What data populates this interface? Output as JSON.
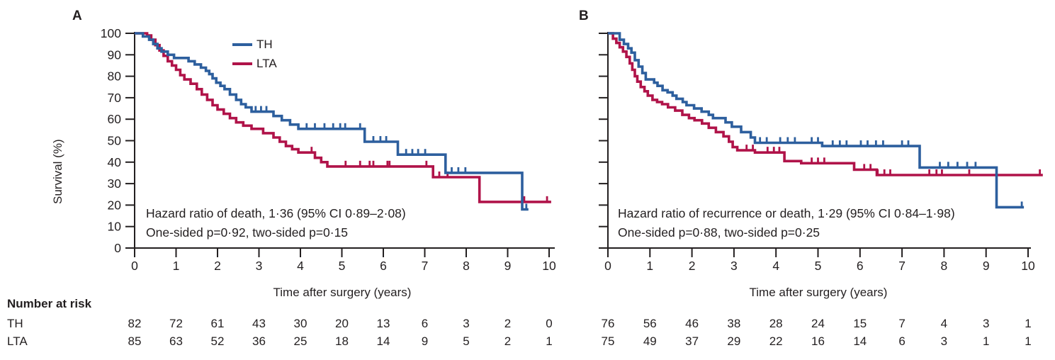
{
  "figure_type": "kaplan-meier-survival-curves",
  "risk_table": {
    "title": "Number at risk",
    "row_labels": [
      "TH",
      "LTA"
    ]
  },
  "chart_data": [
    {
      "type": "line",
      "subtype": "kaplan-meier-step",
      "panel_label": "A",
      "xlabel": "Time after surgery (years)",
      "ylabel": "Survival (%)",
      "xlim": [
        0,
        10
      ],
      "ylim": [
        0,
        100
      ],
      "x_ticks": [
        0,
        1,
        2,
        3,
        4,
        5,
        6,
        7,
        8,
        9,
        10
      ],
      "y_ticks": [
        0,
        10,
        20,
        30,
        40,
        50,
        60,
        70,
        80,
        90,
        100
      ],
      "grid": false,
      "legend_position": "inside-top",
      "annotations": [
        "Hazard ratio of death, 1·36 (95% CI 0·89–2·08)",
        "One-sided p=0·92, two-sided p=0·15"
      ],
      "series": [
        {
          "name": "TH",
          "color": "#2d5f9e",
          "steps": [
            [
              0.2,
              98.5
            ],
            [
              0.35,
              97
            ],
            [
              0.45,
              95
            ],
            [
              0.55,
              93
            ],
            [
              0.65,
              91.5
            ],
            [
              0.8,
              90
            ],
            [
              0.95,
              88.5
            ],
            [
              1.3,
              87
            ],
            [
              1.45,
              85.5
            ],
            [
              1.6,
              84
            ],
            [
              1.72,
              82.5
            ],
            [
              1.8,
              81
            ],
            [
              1.88,
              79
            ],
            [
              1.97,
              77
            ],
            [
              2.07,
              75.5
            ],
            [
              2.17,
              74
            ],
            [
              2.3,
              71.5
            ],
            [
              2.45,
              69
            ],
            [
              2.57,
              67
            ],
            [
              2.68,
              65.5
            ],
            [
              2.82,
              63.5
            ],
            [
              3.35,
              61.5
            ],
            [
              3.55,
              59.5
            ],
            [
              3.75,
              57.5
            ],
            [
              3.95,
              55.5
            ],
            [
              5.55,
              49.5
            ],
            [
              6.35,
              43.5
            ],
            [
              7.5,
              35
            ],
            [
              9.35,
              18
            ]
          ],
          "end_time": 9.5,
          "censor_ticks": [
            2.92,
            3.05,
            3.18,
            4.15,
            4.35,
            4.58,
            4.79,
            4.96,
            5.08,
            5.44,
            5.76,
            5.93,
            6.07,
            6.55,
            6.7,
            6.84,
            7.01,
            7.65,
            7.81,
            7.98,
            9.45
          ],
          "number_at_risk": [
            82,
            72,
            61,
            43,
            30,
            20,
            13,
            6,
            3,
            2,
            0
          ]
        },
        {
          "name": "LTA",
          "color": "#b01349",
          "steps": [
            [
              0.3,
              99
            ],
            [
              0.4,
              97
            ],
            [
              0.5,
              94.5
            ],
            [
              0.6,
              92
            ],
            [
              0.7,
              89.5
            ],
            [
              0.8,
              87
            ],
            [
              0.9,
              85
            ],
            [
              1.0,
              83
            ],
            [
              1.1,
              80.5
            ],
            [
              1.2,
              78.5
            ],
            [
              1.35,
              76.5
            ],
            [
              1.5,
              74
            ],
            [
              1.62,
              71.5
            ],
            [
              1.75,
              69
            ],
            [
              1.88,
              66.5
            ],
            [
              2.0,
              64.5
            ],
            [
              2.15,
              62.5
            ],
            [
              2.3,
              60.5
            ],
            [
              2.45,
              58.5
            ],
            [
              2.62,
              57
            ],
            [
              2.82,
              55.5
            ],
            [
              3.1,
              53.5
            ],
            [
              3.35,
              51.5
            ],
            [
              3.5,
              49.5
            ],
            [
              3.65,
              47.5
            ],
            [
              3.8,
              46
            ],
            [
              3.95,
              44.5
            ],
            [
              4.35,
              42
            ],
            [
              4.5,
              40
            ],
            [
              4.65,
              38
            ],
            [
              7.2,
              33
            ],
            [
              8.32,
              21.5
            ]
          ],
          "end_time": 10.05,
          "censor_ticks": [
            4.27,
            5.09,
            5.44,
            5.67,
            5.76,
            6.1,
            6.15,
            7.04,
            7.35,
            7.55,
            9.4,
            9.95
          ],
          "number_at_risk": [
            85,
            63,
            52,
            36,
            25,
            18,
            14,
            9,
            5,
            2,
            1
          ]
        }
      ]
    },
    {
      "type": "line",
      "subtype": "kaplan-meier-step",
      "panel_label": "B",
      "xlabel": "Time after surgery (years)",
      "ylabel": "Survival (%)",
      "xlim": [
        0,
        10
      ],
      "ylim": [
        0,
        100
      ],
      "x_ticks": [
        0,
        1,
        2,
        3,
        4,
        5,
        6,
        7,
        8,
        9,
        10
      ],
      "y_ticks": [
        0,
        10,
        20,
        30,
        40,
        50,
        60,
        70,
        80,
        90,
        100
      ],
      "grid": false,
      "legend_position": "none",
      "annotations": [
        "Hazard ratio of recurrence or death, 1·29 (95% CI 0·84–1·98)",
        "One-sided p=0·88, two-sided p=0·25"
      ],
      "series": [
        {
          "name": "TH",
          "color": "#2d5f9e",
          "steps": [
            [
              0.28,
              97
            ],
            [
              0.38,
              95
            ],
            [
              0.48,
              93
            ],
            [
              0.56,
              91
            ],
            [
              0.64,
              87.5
            ],
            [
              0.73,
              84.5
            ],
            [
              0.82,
              81.5
            ],
            [
              0.9,
              78.5
            ],
            [
              1.1,
              77
            ],
            [
              1.18,
              75.5
            ],
            [
              1.3,
              73.5
            ],
            [
              1.42,
              72.5
            ],
            [
              1.54,
              71
            ],
            [
              1.63,
              69.5
            ],
            [
              1.78,
              68
            ],
            [
              1.87,
              66.5
            ],
            [
              2.05,
              65
            ],
            [
              2.23,
              63.5
            ],
            [
              2.4,
              62
            ],
            [
              2.5,
              60.5
            ],
            [
              2.8,
              58.5
            ],
            [
              2.95,
              56.5
            ],
            [
              3.17,
              54
            ],
            [
              3.4,
              51.5
            ],
            [
              3.5,
              49
            ],
            [
              5.1,
              47.5
            ],
            [
              7.42,
              37.5
            ],
            [
              9.25,
              19
            ]
          ],
          "end_time": 9.9,
          "censor_ticks": [
            3.62,
            3.78,
            4.1,
            4.28,
            4.45,
            4.85,
            5.0,
            5.35,
            5.52,
            5.68,
            6.02,
            6.18,
            6.38,
            6.55,
            7.0,
            7.15,
            7.9,
            8.1,
            8.32,
            8.55,
            8.75,
            9.85
          ],
          "number_at_risk": [
            76,
            56,
            46,
            38,
            28,
            24,
            15,
            7,
            4,
            3,
            1
          ]
        },
        {
          "name": "LTA",
          "color": "#b01349",
          "steps": [
            [
              0.12,
              97.5
            ],
            [
              0.2,
              95.5
            ],
            [
              0.28,
              93.5
            ],
            [
              0.36,
              91.5
            ],
            [
              0.44,
              89
            ],
            [
              0.52,
              86
            ],
            [
              0.58,
              83
            ],
            [
              0.64,
              80
            ],
            [
              0.7,
              77.5
            ],
            [
              0.78,
              75
            ],
            [
              0.87,
              73
            ],
            [
              0.95,
              71
            ],
            [
              1.06,
              69
            ],
            [
              1.17,
              68
            ],
            [
              1.29,
              67
            ],
            [
              1.43,
              65.5
            ],
            [
              1.6,
              64
            ],
            [
              1.77,
              62
            ],
            [
              1.93,
              60.5
            ],
            [
              2.06,
              59.5
            ],
            [
              2.24,
              58
            ],
            [
              2.4,
              56
            ],
            [
              2.57,
              54
            ],
            [
              2.75,
              52
            ],
            [
              2.88,
              49.5
            ],
            [
              2.97,
              47
            ],
            [
              3.08,
              45.5
            ],
            [
              3.5,
              44.5
            ],
            [
              4.2,
              40.5
            ],
            [
              4.6,
              39.5
            ],
            [
              5.86,
              36.5
            ],
            [
              6.4,
              34
            ]
          ],
          "end_time": 10.35,
          "censor_ticks": [
            3.3,
            3.45,
            3.8,
            3.95,
            4.08,
            4.85,
            5.0,
            5.15,
            6.1,
            6.25,
            6.42,
            6.58,
            6.72,
            7.65,
            7.82,
            7.95,
            8.6,
            10.28
          ],
          "number_at_risk": [
            75,
            49,
            37,
            29,
            22,
            16,
            14,
            6,
            3,
            1,
            1
          ]
        }
      ]
    }
  ]
}
